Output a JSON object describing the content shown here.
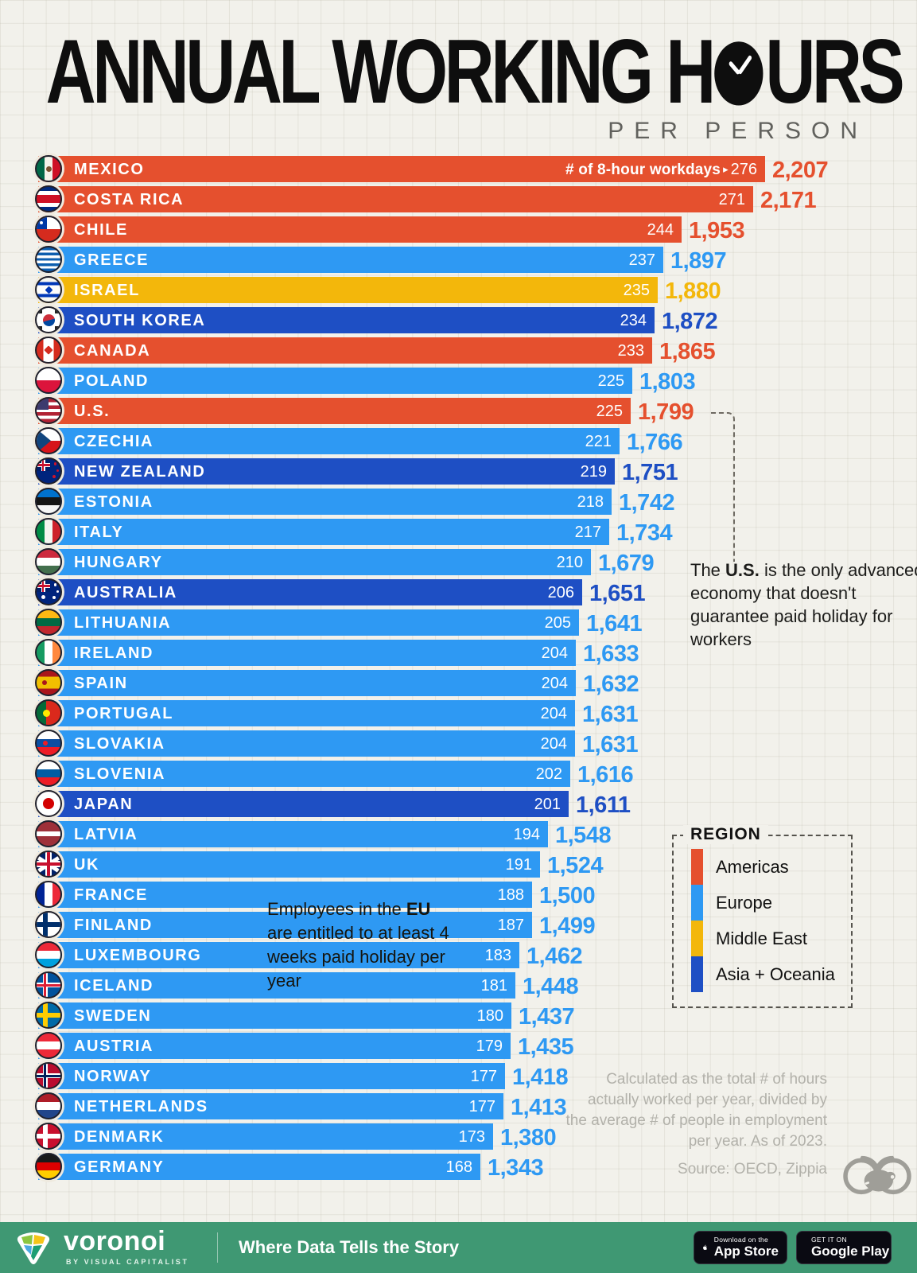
{
  "title": {
    "part1": "ANNUAL WORKING H",
    "part2": "URS",
    "subtitle": "PER PERSON"
  },
  "chart_data": {
    "type": "bar",
    "title": "Annual Working Hours Per Person",
    "orientation": "horizontal",
    "xlim": [
      0,
      2207
    ],
    "unit_label": "# of 8-hour workdays",
    "arrow": "▸",
    "legend_position": "right",
    "regions": {
      "Americas": "#E5502E",
      "Europe": "#2E99F3",
      "Middle East": "#F3B70B",
      "Asia + Oceania": "#1E4FC4"
    },
    "rows": [
      {
        "country": "MEXICO",
        "region": "Americas",
        "workdays": 276,
        "hours": 2207,
        "hours_label": "2,207",
        "flag": {
          "t": "v",
          "c": [
            "#006847",
            "#F5F3EA",
            "#CE1126"
          ],
          "e": {
            "c": "#7a5230",
            "s": 7
          }
        }
      },
      {
        "country": "COSTA RICA",
        "region": "Americas",
        "workdays": 271,
        "hours": 2171,
        "hours_label": "2,171",
        "flag": {
          "t": "h",
          "c": [
            "#002B7F",
            "#FFFFFF",
            "#CE1126",
            "#FFFFFF",
            "#002B7F"
          ],
          "w": [
            1,
            1,
            2,
            1,
            1
          ]
        }
      },
      {
        "country": "CHILE",
        "region": "Americas",
        "workdays": 244,
        "hours": 1953,
        "hours_label": "1,953",
        "flag": {
          "t": "cl"
        }
      },
      {
        "country": "GREECE",
        "region": "Europe",
        "workdays": 237,
        "hours": 1897,
        "hours_label": "1,897",
        "flag": {
          "t": "h",
          "c": [
            "#0D5EAF",
            "#FFFFFF",
            "#0D5EAF",
            "#FFFFFF",
            "#0D5EAF",
            "#FFFFFF",
            "#0D5EAF",
            "#FFFFFF",
            "#0D5EAF"
          ]
        }
      },
      {
        "country": "ISRAEL",
        "region": "Middle East",
        "workdays": 235,
        "hours": 1880,
        "hours_label": "1,880",
        "flag": {
          "t": "h",
          "c": [
            "#F8F8F2",
            "#0038B8",
            "#FDFDFB",
            "#0038B8",
            "#F8F8F2"
          ],
          "w": [
            2,
            1.4,
            4,
            1.4,
            2
          ],
          "e": {
            "c": "#0038B8",
            "s": 7,
            "d": 1
          }
        }
      },
      {
        "country": "SOUTH KOREA",
        "region": "Asia + Oceania",
        "workdays": 234,
        "hours": 1872,
        "hours_label": "1,872",
        "flag": {
          "t": "disc2"
        }
      },
      {
        "country": "CANADA",
        "region": "Americas",
        "workdays": 233,
        "hours": 1865,
        "hours_label": "1,865",
        "flag": {
          "t": "v",
          "c": [
            "#D52B1E",
            "#FFFFFF",
            "#D52B1E"
          ],
          "w": [
            1,
            1.6,
            1
          ],
          "e": {
            "c": "#D52B1E",
            "s": 8,
            "d": 1
          }
        }
      },
      {
        "country": "POLAND",
        "region": "Europe",
        "workdays": 225,
        "hours": 1803,
        "hours_label": "1,803",
        "flag": {
          "t": "h",
          "c": [
            "#FFFFFF",
            "#DC143C"
          ]
        }
      },
      {
        "country": "U.S.",
        "region": "Americas",
        "workdays": 225,
        "hours": 1799,
        "hours_label": "1,799",
        "flag": {
          "t": "us"
        }
      },
      {
        "country": "CZECHIA",
        "region": "Europe",
        "workdays": 221,
        "hours": 1766,
        "hours_label": "1,766",
        "flag": {
          "t": "cz"
        }
      },
      {
        "country": "NEW ZEALAND",
        "region": "Asia + Oceania",
        "workdays": 219,
        "hours": 1751,
        "hours_label": "1,751",
        "flag": {
          "t": "nz"
        }
      },
      {
        "country": "ESTONIA",
        "region": "Europe",
        "workdays": 218,
        "hours": 1742,
        "hours_label": "1,742",
        "flag": {
          "t": "h",
          "c": [
            "#0072CE",
            "#151515",
            "#F5F5F5"
          ]
        }
      },
      {
        "country": "ITALY",
        "region": "Europe",
        "workdays": 217,
        "hours": 1734,
        "hours_label": "1,734",
        "flag": {
          "t": "v",
          "c": [
            "#008C45",
            "#F4F5F0",
            "#CD212A"
          ]
        }
      },
      {
        "country": "HUNGARY",
        "region": "Europe",
        "workdays": 210,
        "hours": 1679,
        "hours_label": "1,679",
        "flag": {
          "t": "h",
          "c": [
            "#CD2A3E",
            "#FFFFFF",
            "#436F4D"
          ]
        }
      },
      {
        "country": "AUSTRALIA",
        "region": "Asia + Oceania",
        "workdays": 206,
        "hours": 1651,
        "hours_label": "1,651",
        "flag": {
          "t": "au"
        }
      },
      {
        "country": "LITHUANIA",
        "region": "Europe",
        "workdays": 205,
        "hours": 1641,
        "hours_label": "1,641",
        "flag": {
          "t": "h",
          "c": [
            "#FDB913",
            "#006A44",
            "#C1272D"
          ]
        }
      },
      {
        "country": "IRELAND",
        "region": "Europe",
        "workdays": 204,
        "hours": 1633,
        "hours_label": "1,633",
        "flag": {
          "t": "v",
          "c": [
            "#169B62",
            "#FFFFFF",
            "#FF883E"
          ]
        }
      },
      {
        "country": "SPAIN",
        "region": "Europe",
        "workdays": 204,
        "hours": 1632,
        "hours_label": "1,632",
        "flag": {
          "t": "h",
          "c": [
            "#AA151B",
            "#F1BF00",
            "#AA151B"
          ],
          "w": [
            1,
            2,
            1
          ],
          "e": {
            "c": "#AA151B",
            "s": 6,
            "x": 34
          }
        }
      },
      {
        "country": "PORTUGAL",
        "region": "Europe",
        "workdays": 204,
        "hours": 1631,
        "hours_label": "1,631",
        "flag": {
          "t": "v",
          "c": [
            "#046A38",
            "#DA291C"
          ],
          "w": [
            2,
            3
          ],
          "e": {
            "c": "#FFE900",
            "s": 9,
            "x": 40
          }
        }
      },
      {
        "country": "SLOVAKIA",
        "region": "Europe",
        "workdays": 204,
        "hours": 1631,
        "hours_label": "1,631",
        "flag": {
          "t": "h",
          "c": [
            "#FFFFFF",
            "#0B4EA2",
            "#EE1C25"
          ],
          "e": {
            "c": "#EE1C25",
            "s": 6,
            "x": 35
          }
        }
      },
      {
        "country": "SLOVENIA",
        "region": "Europe",
        "workdays": 202,
        "hours": 1616,
        "hours_label": "1,616",
        "flag": {
          "t": "h",
          "c": [
            "#FFFFFF",
            "#005DA4",
            "#ED1C24"
          ]
        }
      },
      {
        "country": "JAPAN",
        "region": "Asia + Oceania",
        "workdays": 201,
        "hours": 1611,
        "hours_label": "1,611",
        "flag": {
          "t": "disc"
        }
      },
      {
        "country": "LATVIA",
        "region": "Europe",
        "workdays": 194,
        "hours": 1548,
        "hours_label": "1,548",
        "flag": {
          "t": "h",
          "c": [
            "#9E3039",
            "#FFFFFF",
            "#9E3039"
          ],
          "w": [
            2,
            1,
            2
          ]
        }
      },
      {
        "country": "UK",
        "region": "Europe",
        "workdays": 191,
        "hours": 1524,
        "hours_label": "1,524",
        "flag": {
          "t": "uk"
        }
      },
      {
        "country": "FRANCE",
        "region": "Europe",
        "workdays": 188,
        "hours": 1500,
        "hours_label": "1,500",
        "flag": {
          "t": "v",
          "c": [
            "#002395",
            "#FFFFFF",
            "#ED2939"
          ]
        }
      },
      {
        "country": "FINLAND",
        "region": "Europe",
        "workdays": 187,
        "hours": 1499,
        "hours_label": "1,499",
        "flag": {
          "t": "cross",
          "bg": "#FFFFFF",
          "c1": "#002F6C"
        }
      },
      {
        "country": "LUXEMBOURG",
        "region": "Europe",
        "workdays": 183,
        "hours": 1462,
        "hours_label": "1,462",
        "flag": {
          "t": "h",
          "c": [
            "#ED2939",
            "#FFFFFF",
            "#00A1DE"
          ]
        }
      },
      {
        "country": "ICELAND",
        "region": "Europe",
        "workdays": 181,
        "hours": 1448,
        "hours_label": "1,448",
        "flag": {
          "t": "cross",
          "bg": "#02529C",
          "c1": "#FFFFFF",
          "c2": "#DC1E35"
        }
      },
      {
        "country": "SWEDEN",
        "region": "Europe",
        "workdays": 180,
        "hours": 1437,
        "hours_label": "1,437",
        "flag": {
          "t": "cross",
          "bg": "#006AA7",
          "c1": "#FECC02"
        }
      },
      {
        "country": "AUSTRIA",
        "region": "Europe",
        "workdays": 179,
        "hours": 1435,
        "hours_label": "1,435",
        "flag": {
          "t": "h",
          "c": [
            "#ED2939",
            "#FFFFFF",
            "#ED2939"
          ]
        }
      },
      {
        "country": "NORWAY",
        "region": "Europe",
        "workdays": 177,
        "hours": 1418,
        "hours_label": "1,418",
        "flag": {
          "t": "cross",
          "bg": "#BA0C2F",
          "c1": "#FFFFFF",
          "c2": "#00205B"
        }
      },
      {
        "country": "NETHERLANDS",
        "region": "Europe",
        "workdays": 177,
        "hours": 1413,
        "hours_label": "1,413",
        "flag": {
          "t": "h",
          "c": [
            "#AE1C28",
            "#FFFFFF",
            "#21468B"
          ]
        }
      },
      {
        "country": "DENMARK",
        "region": "Europe",
        "workdays": 173,
        "hours": 1380,
        "hours_label": "1,380",
        "flag": {
          "t": "cross",
          "bg": "#C8102E",
          "c1": "#FFFFFF"
        }
      },
      {
        "country": "GERMANY",
        "region": "Europe",
        "workdays": 168,
        "hours": 1343,
        "hours_label": "1,343",
        "flag": {
          "t": "h",
          "c": [
            "#1A1A1A",
            "#DD0000",
            "#FFCE00"
          ]
        }
      }
    ]
  },
  "annotations": {
    "us": {
      "pre": "The ",
      "bold": "U.S.",
      "post": " is the only advanced economy that doesn't guarantee paid holiday for workers"
    },
    "eu": {
      "pre": "Employees in the ",
      "bold": "EU",
      "post": " are entitled to at least 4 weeks paid holiday per year"
    }
  },
  "legend": {
    "title": "REGION",
    "items": [
      {
        "label": "Americas",
        "color": "#E5502E"
      },
      {
        "label": "Europe",
        "color": "#2E99F3"
      },
      {
        "label": "Middle East",
        "color": "#F3B70B"
      },
      {
        "label": "Asia + Oceania",
        "color": "#1E4FC4"
      }
    ]
  },
  "footnote": {
    "text": "Calculated as the total # of hours actually worked per year, divided by the average # of people in employment per year. As of 2023.",
    "source": "Source: OECD, Zippia"
  },
  "footer": {
    "brand": "voronoi",
    "byline": "BY VISUAL CAPITALIST",
    "tagline": "Where Data Tells the Story",
    "appstore": {
      "small": "Download on the",
      "big": "App Store"
    },
    "gplay": {
      "small": "GET IT ON",
      "big": "Google Play"
    }
  }
}
